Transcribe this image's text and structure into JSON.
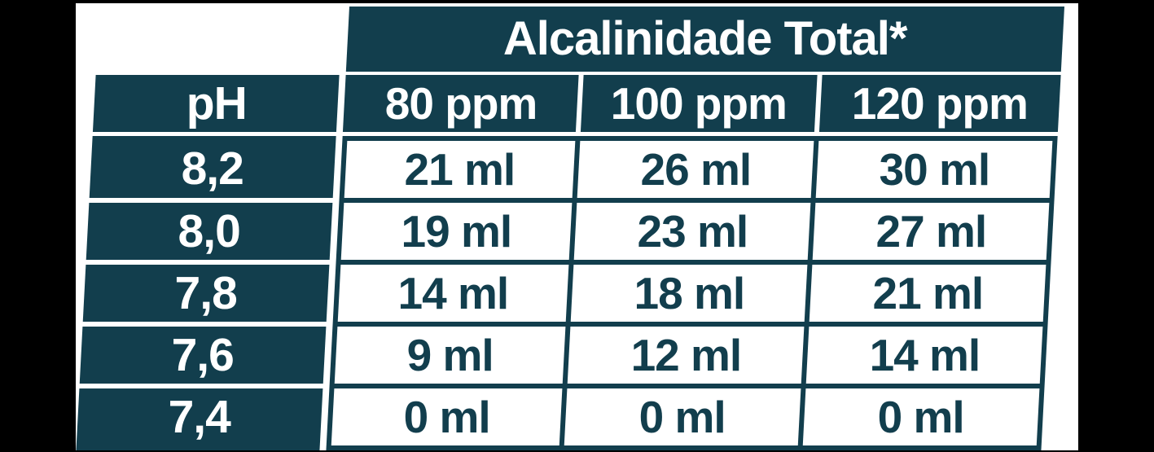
{
  "colors": {
    "teal": "#123E4D",
    "paper": "#FFFFFF",
    "canvas": "#000000"
  },
  "table": {
    "span_header": "Alcalinidade Total*",
    "columns": [
      "pH",
      "80 ppm",
      "100 ppm",
      "120 ppm"
    ],
    "rows": [
      {
        "ph": "8,2",
        "values": [
          "21 ml",
          "26 ml",
          "30 ml"
        ]
      },
      {
        "ph": "8,0",
        "values": [
          "19 ml",
          "23 ml",
          "27 ml"
        ]
      },
      {
        "ph": "7,8",
        "values": [
          "14 ml",
          "18 ml",
          "21 ml"
        ]
      },
      {
        "ph": "7,6",
        "values": [
          "9 ml",
          "12 ml",
          "14 ml"
        ]
      },
      {
        "ph": "7,4",
        "values": [
          "0 ml",
          "0 ml",
          "0 ml"
        ]
      }
    ]
  },
  "chart_data": {
    "type": "table",
    "title": "Alcalinidade Total*",
    "columns": [
      "pH",
      "80 ppm",
      "100 ppm",
      "120 ppm"
    ],
    "rows": [
      [
        "8,2",
        "21 ml",
        "26 ml",
        "30 ml"
      ],
      [
        "8,0",
        "19 ml",
        "23 ml",
        "27 ml"
      ],
      [
        "7,8",
        "14 ml",
        "18 ml",
        "21 ml"
      ],
      [
        "7,6",
        "9 ml",
        "12 ml",
        "14 ml"
      ],
      [
        "7,4",
        "0 ml",
        "0 ml",
        "0 ml"
      ]
    ],
    "units": {
      "ph_column": "pH",
      "value_cells": "ml",
      "column_headers": "ppm"
    },
    "layout_hints": {
      "header_fill": "#123E4D",
      "cell_fill": "#FFFFFF",
      "skew_deg": -3
    }
  }
}
